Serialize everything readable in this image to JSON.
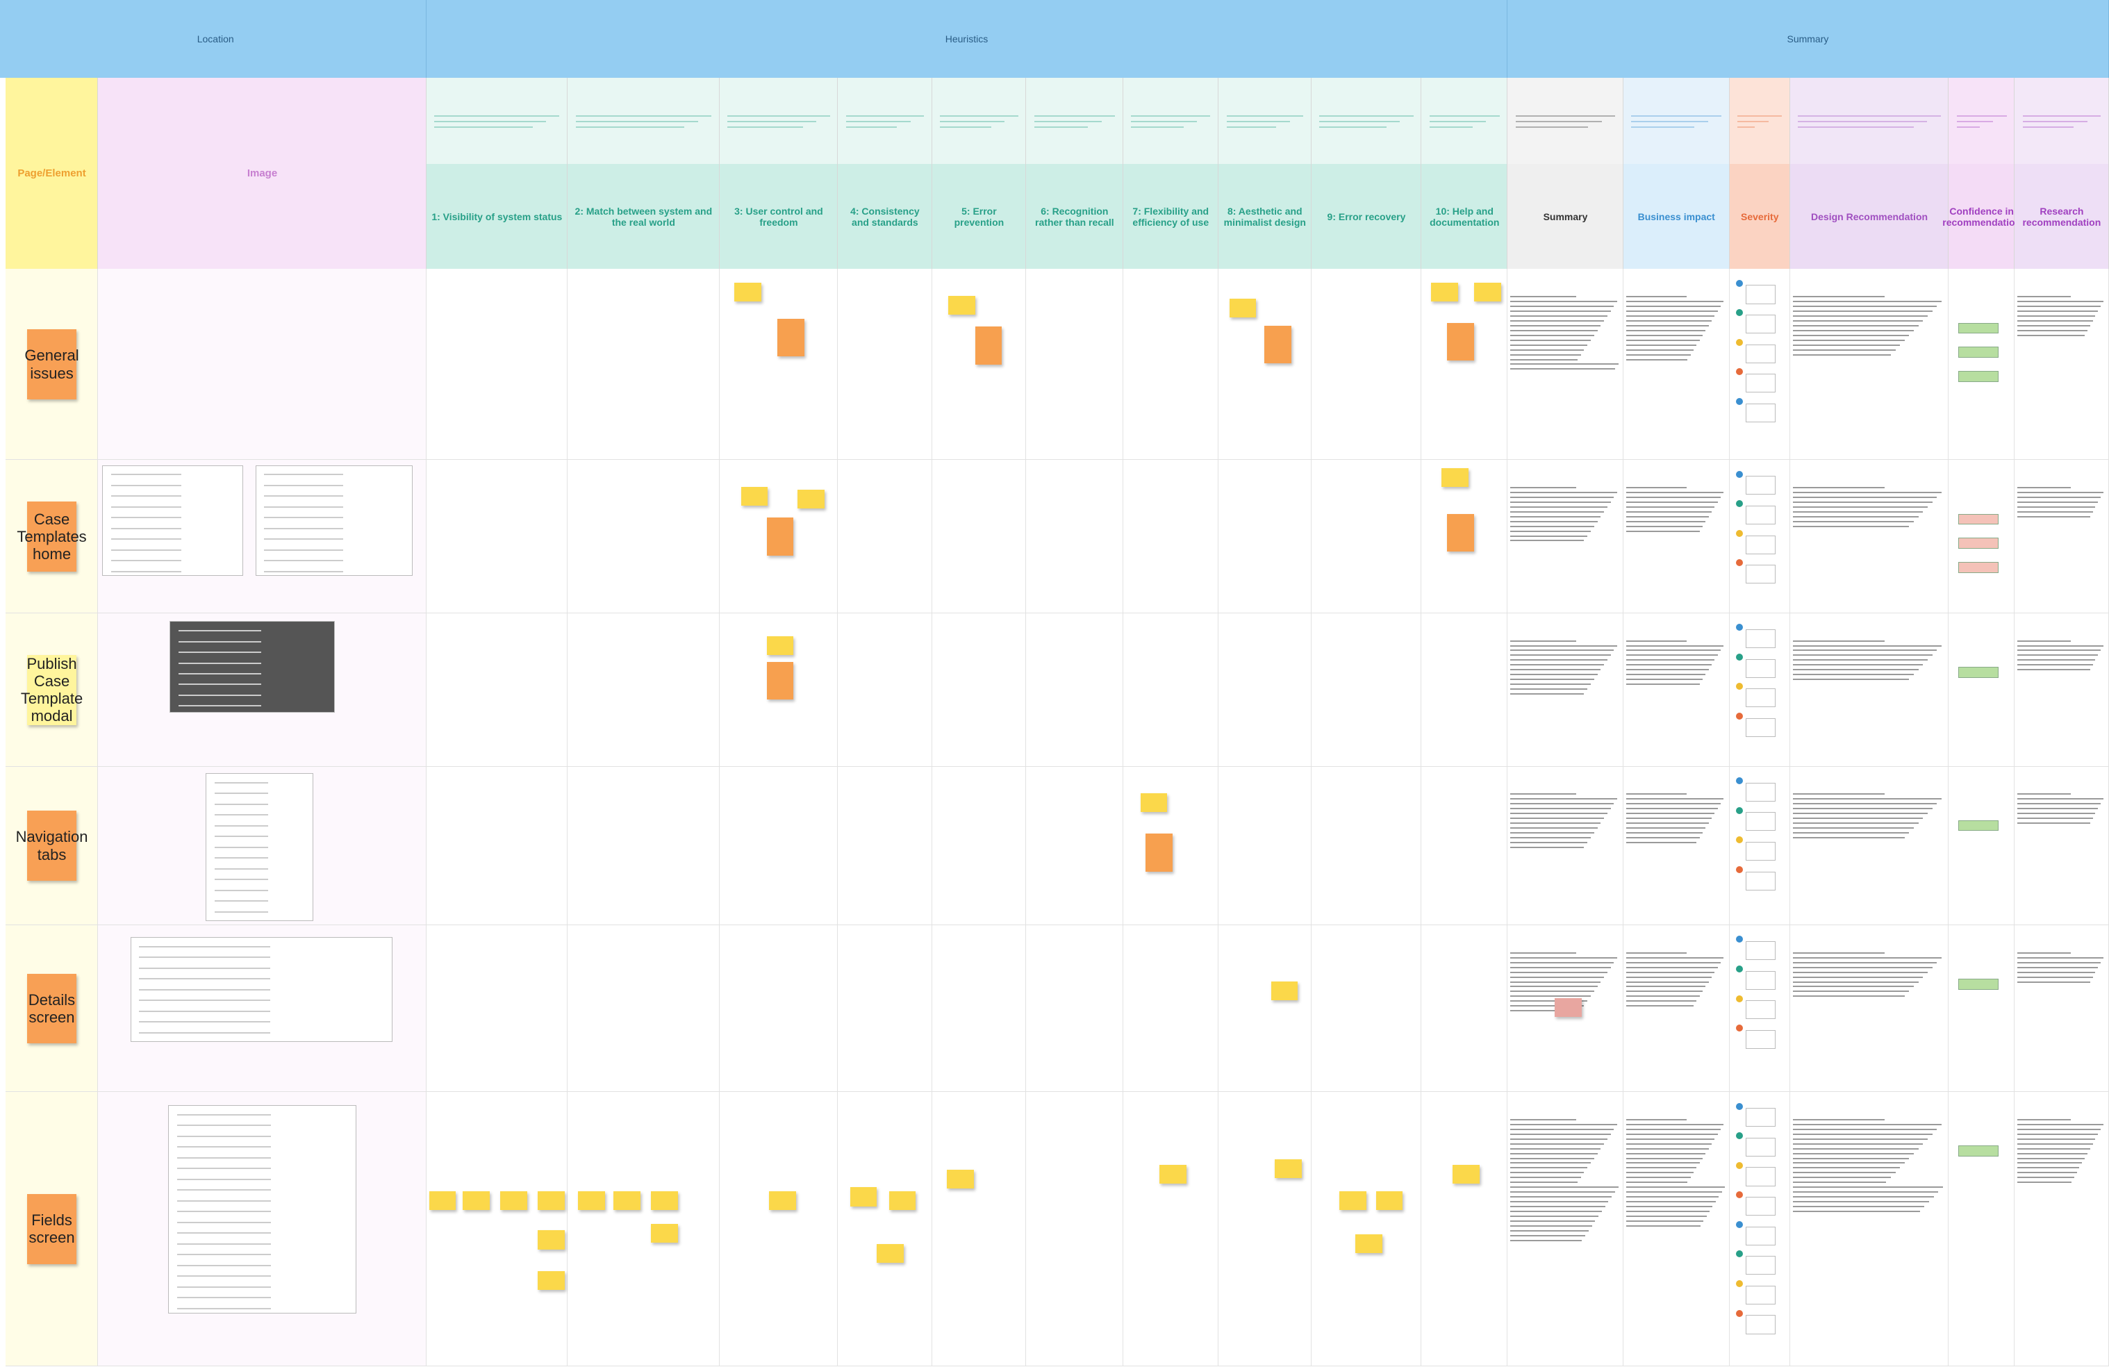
{
  "header": {
    "location": "Location",
    "heuristics": "Heuristics",
    "summary": "Summary"
  },
  "columns": [
    "Page/Element",
    "Image",
    "1: Visibility of system status",
    "2: Match between system and the real world",
    "3: User control and freedom",
    "4: Consistency and standards",
    "5: Error prevention",
    "6: Recognition rather than recall",
    "7: Flexibility and efficiency of use",
    "8: Aesthetic and minimalist design",
    "9: Error recovery",
    "10: Help and documentation",
    "Summary",
    "Business impact",
    "Severity",
    "Design Recommendation",
    "Confidence in recommendation",
    "Research recommendation"
  ],
  "rows": [
    {
      "label": "General issues"
    },
    {
      "label": "Case Templates home"
    },
    {
      "label": "Publish Case Template modal"
    },
    {
      "label": "Navigation tabs"
    },
    {
      "label": "Details screen"
    },
    {
      "label": "Fields screen"
    }
  ]
}
